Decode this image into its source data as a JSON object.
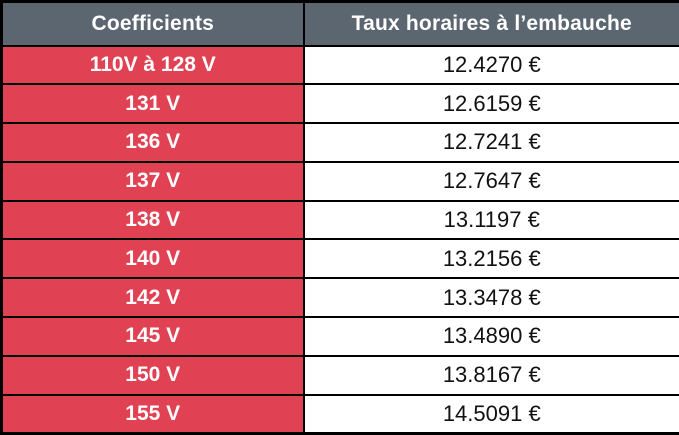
{
  "colors": {
    "header_bg": "#5b6670",
    "header_text": "#ffffff",
    "coefficient_bg": "#e04254",
    "coefficient_text": "#ffffff",
    "rate_bg": "#ffffff",
    "rate_text": "#111111",
    "border": "#000000"
  },
  "table": {
    "headers": {
      "coefficient": "Coefficients",
      "rate": "Taux horaires à l’embauche"
    },
    "rows": [
      {
        "coefficient": "110V à 128 V",
        "rate": "12.4270 €"
      },
      {
        "coefficient": "131 V",
        "rate": "12.6159 €"
      },
      {
        "coefficient": "136 V",
        "rate": "12.7241 €"
      },
      {
        "coefficient": "137 V",
        "rate": "12.7647 €"
      },
      {
        "coefficient": "138 V",
        "rate": "13.1197 €"
      },
      {
        "coefficient": "140 V",
        "rate": "13.2156 €"
      },
      {
        "coefficient": "142 V",
        "rate": "13.3478 €"
      },
      {
        "coefficient": "145 V",
        "rate": "13.4890 €"
      },
      {
        "coefficient": "150 V",
        "rate": "13.8167 €"
      },
      {
        "coefficient": "155 V",
        "rate": "14.5091 €"
      }
    ]
  }
}
